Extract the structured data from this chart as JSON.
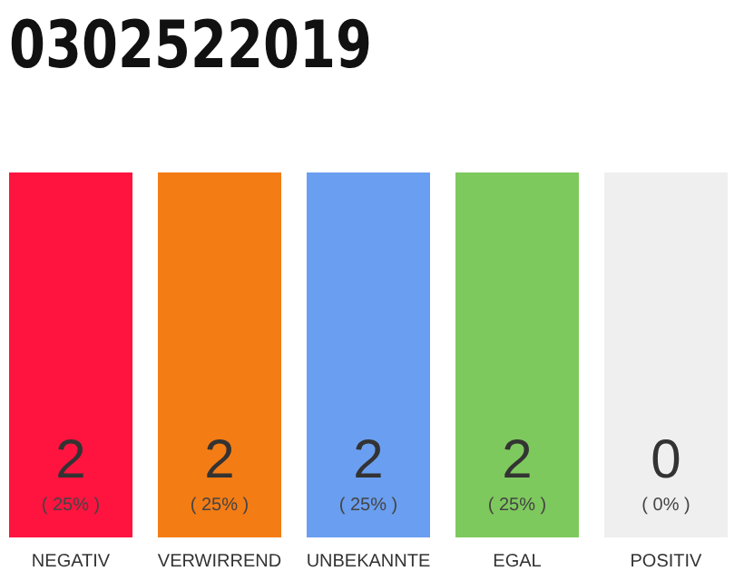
{
  "chart_data": {
    "type": "other",
    "title": "0302522019",
    "categories": [
      "NEGATIV",
      "VERWIRREND",
      "UNBEKANNTE",
      "EGAL",
      "POSITIV"
    ],
    "values": [
      2,
      2,
      2,
      2,
      0
    ],
    "data_labels": true,
    "annotations": [
      {
        "text": "( 25% )",
        "x": "NEGATIV"
      },
      {
        "text": "( 25% )",
        "x": "VERWIRREND"
      },
      {
        "text": "( 25% )",
        "x": "UNBEKANNTE"
      },
      {
        "text": "( 25% )",
        "x": "EGAL"
      },
      {
        "text": "( 0% )",
        "x": "POSITIV"
      }
    ],
    "colors": [
      "#fe143f",
      "#f47c14",
      "#6a9ef0",
      "#7ec95e",
      "#efefef"
    ]
  }
}
